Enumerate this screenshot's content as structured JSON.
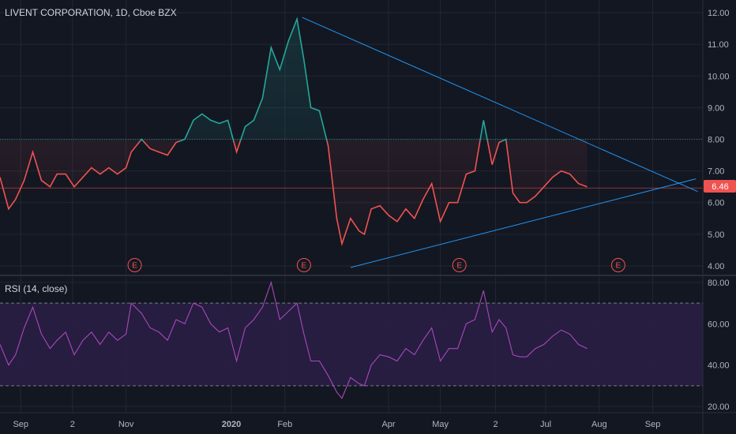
{
  "header": {
    "symbol_label": "LIVENT CORPORATION, 1D, Cboe BZX"
  },
  "colors": {
    "background": "#131722",
    "grid": "#232733",
    "up": "#26a69a",
    "down": "#ef5350",
    "trendline": "#2196f3",
    "rsi": "#ab47bc",
    "rsi_band": "#2a1f45",
    "price_badge": "#ef5350",
    "earnings": "#ef5350"
  },
  "chart_data": [
    {
      "type": "line",
      "title": "LIVENT CORPORATION, 1D, Cboe BZX",
      "last_price": 6.46,
      "last_price_label": "6.46",
      "threshold": 8.0,
      "ylim": [
        3.7,
        12.4
      ],
      "xlim": [
        "2019-08-20",
        "2020-09-30"
      ],
      "y_ticks": [
        4,
        5,
        6,
        7,
        8,
        9,
        10,
        11,
        12
      ],
      "y_tick_labels": [
        "4.00",
        "5.00",
        "6.00",
        "7.00",
        "8.00",
        "9.00",
        "10.00",
        "11.00",
        "12.00"
      ],
      "x_ticks": [
        {
          "date": "2019-09-01",
          "label": "Sep"
        },
        {
          "date": "2019-10-01",
          "label": "2"
        },
        {
          "date": "2019-11-01",
          "label": "Nov"
        },
        {
          "date": "2020-01-01",
          "label": "2020"
        },
        {
          "date": "2020-02-01",
          "label": "Feb"
        },
        {
          "date": "2020-04-01",
          "label": "Apr"
        },
        {
          "date": "2020-05-01",
          "label": "May"
        },
        {
          "date": "2020-06-02",
          "label": "2"
        },
        {
          "date": "2020-07-01",
          "label": "Jul"
        },
        {
          "date": "2020-08-01",
          "label": "Aug"
        },
        {
          "date": "2020-09-01",
          "label": "Sep"
        }
      ],
      "series": [
        {
          "x": [
            "2019-08-20",
            "2019-08-25",
            "2019-08-29",
            "2019-09-03",
            "2019-09-08",
            "2019-09-13",
            "2019-09-18",
            "2019-09-22",
            "2019-09-27",
            "2019-10-02",
            "2019-10-07",
            "2019-10-12",
            "2019-10-17",
            "2019-10-22",
            "2019-10-27",
            "2019-11-01",
            "2019-11-04",
            "2019-11-10",
            "2019-11-15",
            "2019-11-20",
            "2019-11-25",
            "2019-11-30",
            "2019-12-05",
            "2019-12-10",
            "2019-12-15",
            "2019-12-20",
            "2019-12-25",
            "2019-12-30",
            "2020-01-04",
            "2020-01-09",
            "2020-01-14",
            "2020-01-19",
            "2020-01-24",
            "2020-01-29",
            "2020-02-03",
            "2020-02-08",
            "2020-02-12",
            "2020-02-16",
            "2020-02-21",
            "2020-02-26",
            "2020-03-02",
            "2020-03-05",
            "2020-03-10",
            "2020-03-15",
            "2020-03-18",
            "2020-03-22",
            "2020-03-27",
            "2020-04-01",
            "2020-04-06",
            "2020-04-11",
            "2020-04-16",
            "2020-04-21",
            "2020-04-26",
            "2020-05-01",
            "2020-05-06",
            "2020-05-11",
            "2020-05-16",
            "2020-05-21",
            "2020-05-26",
            "2020-05-31",
            "2020-06-04",
            "2020-06-08",
            "2020-06-12",
            "2020-06-16",
            "2020-06-20",
            "2020-06-25",
            "2020-06-30",
            "2020-07-05",
            "2020-07-10",
            "2020-07-15",
            "2020-07-20",
            "2020-07-25"
          ],
          "y": [
            6.8,
            5.8,
            6.1,
            6.7,
            7.6,
            6.7,
            6.5,
            6.9,
            6.9,
            6.5,
            6.8,
            7.1,
            6.9,
            7.1,
            6.9,
            7.1,
            7.6,
            8.0,
            7.7,
            7.6,
            7.5,
            7.9,
            8.0,
            8.6,
            8.8,
            8.6,
            8.5,
            8.6,
            7.6,
            8.4,
            8.6,
            9.3,
            10.9,
            10.2,
            11.1,
            11.8,
            10.5,
            9.0,
            8.9,
            7.8,
            5.5,
            4.7,
            5.5,
            5.1,
            5.0,
            5.8,
            5.9,
            5.6,
            5.4,
            5.8,
            5.5,
            6.1,
            6.6,
            5.4,
            6.0,
            6.0,
            6.9,
            7.0,
            8.6,
            7.2,
            7.9,
            8.0,
            6.3,
            6.0,
            6.0,
            6.2,
            6.5,
            6.8,
            7.0,
            6.9,
            6.6,
            6.5
          ]
        }
      ]
    },
    {
      "type": "line",
      "title": "RSI (14, close)",
      "ylim": [
        17,
        83
      ],
      "band": [
        30,
        70
      ],
      "y_ticks": [
        20,
        40,
        60,
        80
      ],
      "y_tick_labels": [
        "20.00",
        "40.00",
        "60.00",
        "80.00"
      ],
      "series": [
        {
          "x": [
            "2019-08-20",
            "2019-08-25",
            "2019-08-29",
            "2019-09-03",
            "2019-09-08",
            "2019-09-13",
            "2019-09-18",
            "2019-09-22",
            "2019-09-27",
            "2019-10-02",
            "2019-10-07",
            "2019-10-12",
            "2019-10-17",
            "2019-10-22",
            "2019-10-27",
            "2019-11-01",
            "2019-11-04",
            "2019-11-10",
            "2019-11-15",
            "2019-11-20",
            "2019-11-25",
            "2019-11-30",
            "2019-12-05",
            "2019-12-10",
            "2019-12-15",
            "2019-12-20",
            "2019-12-25",
            "2019-12-30",
            "2020-01-04",
            "2020-01-09",
            "2020-01-14",
            "2020-01-19",
            "2020-01-24",
            "2020-01-29",
            "2020-02-03",
            "2020-02-08",
            "2020-02-12",
            "2020-02-16",
            "2020-02-21",
            "2020-02-26",
            "2020-03-02",
            "2020-03-05",
            "2020-03-10",
            "2020-03-15",
            "2020-03-18",
            "2020-03-22",
            "2020-03-27",
            "2020-04-01",
            "2020-04-06",
            "2020-04-11",
            "2020-04-16",
            "2020-04-21",
            "2020-04-26",
            "2020-05-01",
            "2020-05-06",
            "2020-05-11",
            "2020-05-16",
            "2020-05-21",
            "2020-05-26",
            "2020-05-31",
            "2020-06-04",
            "2020-06-08",
            "2020-06-12",
            "2020-06-16",
            "2020-06-20",
            "2020-06-25",
            "2020-06-30",
            "2020-07-05",
            "2020-07-10",
            "2020-07-15",
            "2020-07-20",
            "2020-07-25"
          ],
          "y": [
            50,
            40,
            45,
            58,
            68,
            55,
            48,
            52,
            56,
            45,
            52,
            56,
            50,
            56,
            52,
            55,
            70,
            65,
            58,
            56,
            52,
            62,
            60,
            70,
            68,
            60,
            56,
            58,
            42,
            58,
            62,
            68,
            80,
            62,
            66,
            70,
            55,
            42,
            42,
            35,
            27,
            24,
            34,
            31,
            30,
            40,
            45,
            44,
            42,
            48,
            45,
            52,
            58,
            42,
            48,
            48,
            60,
            62,
            76,
            56,
            62,
            58,
            45,
            44,
            44,
            48,
            50,
            54,
            57,
            55,
            50,
            48
          ]
        }
      ]
    }
  ],
  "trendlines": [
    {
      "x": [
        "2020-02-11",
        "2020-09-27"
      ],
      "y": [
        11.85,
        6.35
      ]
    },
    {
      "x": [
        "2020-03-10",
        "2020-09-26"
      ],
      "y": [
        3.95,
        6.75
      ]
    }
  ],
  "earnings_markers": [
    {
      "date": "2019-11-06",
      "label": "E"
    },
    {
      "date": "2020-02-12",
      "label": "E"
    },
    {
      "date": "2020-05-12",
      "label": "E"
    },
    {
      "date": "2020-08-12",
      "label": "E"
    }
  ]
}
